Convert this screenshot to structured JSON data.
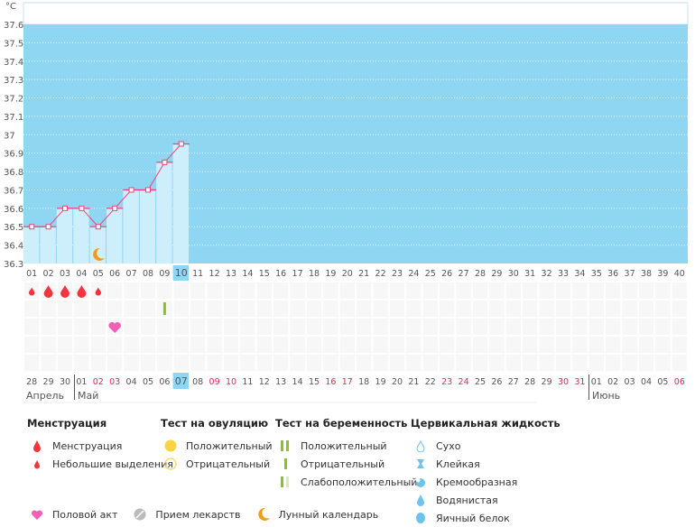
{
  "chart_data": {
    "type": "line",
    "unit_label": "°C",
    "ylim": [
      36.3,
      37.6
    ],
    "yticks": [
      "37.6",
      "37.5",
      "37.4",
      "37.3",
      "37.2",
      "37.1",
      "37",
      "36.9",
      "36.8",
      "36.7",
      "36.6",
      "36.5",
      "36.4",
      "36.3"
    ],
    "cycle_days": [
      "01",
      "02",
      "03",
      "04",
      "05",
      "06",
      "07",
      "08",
      "09",
      "10",
      "11",
      "12",
      "13",
      "14",
      "15",
      "16",
      "17",
      "18",
      "19",
      "20",
      "21",
      "22",
      "23",
      "24",
      "25",
      "26",
      "27",
      "28",
      "29",
      "30",
      "31",
      "32",
      "33",
      "34",
      "35",
      "36",
      "37",
      "38",
      "39",
      "40"
    ],
    "current_day": "10",
    "temperatures": [
      36.5,
      36.5,
      36.6,
      36.6,
      36.5,
      36.6,
      36.7,
      36.7,
      36.85,
      36.95
    ],
    "moon_day": 5
  },
  "markers": {
    "menstruation": [
      {
        "day": 1,
        "size": "small"
      },
      {
        "day": 2,
        "size": "big"
      },
      {
        "day": 3,
        "size": "big"
      },
      {
        "day": 4,
        "size": "big"
      },
      {
        "day": 5,
        "size": "small"
      }
    ],
    "pregnancy_test": [
      {
        "day": 9,
        "result": "negative"
      }
    ],
    "intercourse": [
      6
    ]
  },
  "calendar": {
    "dates": [
      "28",
      "29",
      "30",
      "01",
      "02",
      "03",
      "04",
      "05",
      "06",
      "07",
      "08",
      "09",
      "10",
      "11",
      "12",
      "13",
      "14",
      "15",
      "16",
      "17",
      "18",
      "19",
      "20",
      "21",
      "22",
      "23",
      "24",
      "25",
      "26",
      "27",
      "28",
      "29",
      "30",
      "31",
      "01",
      "02",
      "03",
      "04",
      "05",
      "06"
    ],
    "weekend_indices": [
      4,
      5,
      11,
      12,
      18,
      19,
      25,
      26,
      32,
      33,
      39
    ],
    "today_index": 9,
    "months": [
      "Апрель",
      "Май",
      "Июнь"
    ]
  },
  "colors": {
    "chart_bg": "#8fd6f2",
    "bar": "#cdeefb",
    "line": "#f0427a",
    "weekend": "#e8245a",
    "today": "#8fd6f2",
    "drop": "#f2343e"
  },
  "legend": {
    "menstruation": {
      "title": "Менструация",
      "items": [
        "Менструация",
        "Небольшие выделения"
      ]
    },
    "ovulation": {
      "title": "Тест на овуляцию",
      "items": [
        "Положительный",
        "Отрицательный"
      ]
    },
    "pregnancy": {
      "title": "Тест на беременность",
      "items": [
        "Положительный",
        "Отрицательный",
        "Слабоположительный"
      ]
    },
    "cervical": {
      "title": "Цервикальная жидкость",
      "items": [
        "Сухо",
        "Клейкая",
        "Кремообразная",
        "Водянистая",
        "Яичный белок"
      ]
    },
    "other": [
      "Половой акт",
      "Прием лекарств",
      "Лунный календарь"
    ]
  }
}
